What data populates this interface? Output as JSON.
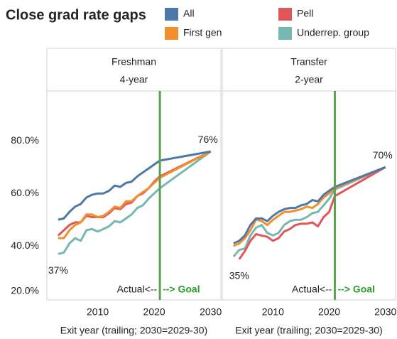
{
  "title": "Close grad rate gaps",
  "chart_data": [
    {
      "type": "line",
      "header": "Freshman",
      "subheader": "4-year",
      "x_label": "Exit year (trailing; 2030=2029-30)",
      "x": [
        2003,
        2004,
        2005,
        2006,
        2007,
        2008,
        2009,
        2010,
        2011,
        2012,
        2013,
        2014,
        2015,
        2016,
        2017,
        2018,
        2019,
        2020,
        2021,
        2030
      ],
      "xlim": [
        2001,
        2031.8
      ],
      "xticks": [
        2010,
        2020,
        2030
      ],
      "ylim": [
        19.5,
        99
      ],
      "yticks": [
        {
          "value": 20,
          "label": "20.0%"
        },
        {
          "value": 40,
          "label": "40.0%"
        },
        {
          "value": 60,
          "label": "60.0%"
        },
        {
          "value": 80,
          "label": "80.0%"
        }
      ],
      "goal_year": 2021,
      "goal_labels": [
        "Actual<--",
        "--> Goal"
      ],
      "series": [
        {
          "name": "All",
          "color": "#4e79a7",
          "values": [
            50,
            50.5,
            53,
            55,
            56,
            58.5,
            59.5,
            60,
            60,
            61,
            63,
            62.5,
            64,
            64.5,
            66.5,
            68,
            69.5,
            71,
            72.5,
            76
          ],
          "value_labels": [
            null,
            null,
            null,
            null,
            null,
            null,
            null,
            null,
            null,
            null,
            null,
            null,
            null,
            null,
            null,
            null,
            null,
            null,
            null,
            "76%"
          ]
        },
        {
          "name": "First gen",
          "color": "#f28e2b",
          "values": [
            43,
            43,
            46,
            48,
            49,
            52,
            52,
            51,
            51.5,
            53,
            55,
            54.5,
            57,
            57,
            59,
            60.5,
            62,
            64,
            66,
            76
          ]
        },
        {
          "name": "Pell",
          "color": "#e15759",
          "values": [
            44,
            46,
            48,
            49,
            49,
            51.5,
            51,
            51,
            51,
            52.5,
            54.5,
            54,
            56,
            56.5,
            59,
            60,
            62,
            64.5,
            66.5,
            76
          ]
        },
        {
          "name": "Underrep. group",
          "color": "#76b7b2",
          "values": [
            37,
            37.5,
            41,
            43,
            42,
            46,
            46.5,
            45.5,
            46.5,
            47.5,
            49.5,
            49,
            50.5,
            52,
            54.5,
            55.5,
            58,
            60,
            62,
            76
          ],
          "value_labels": [
            "37%",
            null,
            null,
            null,
            null,
            null,
            null,
            null,
            null,
            null,
            null,
            null,
            null,
            null,
            null,
            null,
            null,
            null,
            null,
            null
          ]
        }
      ]
    },
    {
      "type": "line",
      "header": "Transfer",
      "subheader": "2-year",
      "x_label": "Exit year (trailing; 2030=2029-30)",
      "x": [
        2003,
        2004,
        2005,
        2006,
        2007,
        2008,
        2009,
        2010,
        2011,
        2012,
        2013,
        2014,
        2015,
        2016,
        2017,
        2018,
        2019,
        2020,
        2021,
        2030
      ],
      "xlim": [
        2001,
        2031.8
      ],
      "xticks": [
        2010,
        2020,
        2030
      ],
      "ylim": [
        19.5,
        99
      ],
      "goal_year": 2021,
      "goal_labels": [
        "Actual<--",
        "--> Goal"
      ],
      "series": [
        {
          "name": "All",
          "color": "#4e79a7",
          "values": [
            41,
            42,
            44,
            48,
            50.5,
            50.5,
            49.5,
            51.5,
            53,
            54,
            54.5,
            54.5,
            55.5,
            56,
            57.5,
            57,
            59.5,
            61,
            62.5,
            70
          ],
          "value_labels": [
            null,
            null,
            null,
            null,
            null,
            null,
            null,
            null,
            null,
            null,
            null,
            null,
            null,
            null,
            null,
            null,
            null,
            null,
            null,
            "70%"
          ]
        },
        {
          "name": "First gen",
          "color": "#f28e2b",
          "values": [
            40,
            41,
            43,
            46,
            50,
            49.5,
            48,
            50,
            51.5,
            53,
            53,
            53.5,
            54,
            55,
            54.5,
            56,
            58.5,
            60,
            62,
            70
          ]
        },
        {
          "name": "Pell",
          "color": "#e15759",
          "values": [
            null,
            35,
            38,
            42,
            44.5,
            44,
            43.5,
            42,
            43,
            45.5,
            46.5,
            48,
            48.5,
            48.5,
            49,
            47.5,
            51,
            53,
            59,
            70
          ],
          "value_labels": [
            null,
            "35%",
            null,
            null,
            null,
            null,
            null,
            null,
            null,
            null,
            null,
            null,
            null,
            null,
            null,
            null,
            null,
            null,
            null,
            null
          ]
        },
        {
          "name": "Underrep. group",
          "color": "#76b7b2",
          "values": [
            36,
            38.5,
            39,
            44,
            47,
            48,
            45,
            44,
            45,
            48,
            49.5,
            50,
            50,
            51,
            52.5,
            53,
            55.5,
            58,
            61.5,
            70
          ]
        }
      ]
    }
  ]
}
